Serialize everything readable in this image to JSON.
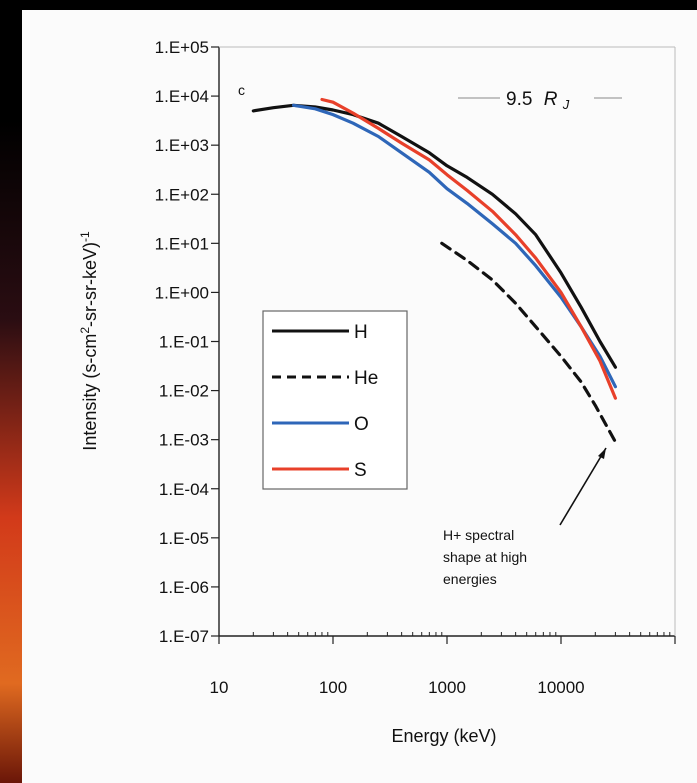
{
  "chart_data": {
    "type": "line",
    "panel_letter": "c",
    "location_label": "9.5",
    "location_unit": "R",
    "location_unit_sub": "J",
    "xlabel": "Energy (keV)",
    "ylabel_parts": [
      "Intensity (s-cm",
      "2",
      "-sr-sr-keV)",
      "-1"
    ],
    "xscale": "log",
    "yscale": "log",
    "xlim": [
      10,
      100000
    ],
    "ylim": [
      1e-07,
      100000.0
    ],
    "x_tick_labels": [
      "10",
      "100",
      "1000",
      "10000"
    ],
    "y_tick_labels": [
      "1.E+05",
      "1.E+04",
      "1.E+03",
      "1.E+02",
      "1.E+01",
      "1.E+00",
      "1.E-01",
      "1.E-02",
      "1.E-03",
      "1.E-04",
      "1.E-05",
      "1.E-06",
      "1.E-07"
    ],
    "annotation_lines": [
      "H+ spectral",
      "shape at high",
      "energies"
    ],
    "series": [
      {
        "name": "H",
        "color": "#111111",
        "dash": "solid",
        "x": [
          20,
          30,
          45,
          70,
          100,
          150,
          250,
          400,
          700,
          1000,
          1500,
          2500,
          4000,
          6000,
          10000,
          15000,
          22000,
          30000
        ],
        "y": [
          5000,
          5800,
          6500,
          6000,
          5200,
          4200,
          2800,
          1500,
          700,
          380,
          220,
          100,
          40,
          15,
          2.5,
          0.5,
          0.1,
          0.03
        ]
      },
      {
        "name": "He",
        "color": "#111111",
        "dash": "dashed",
        "x": [
          900,
          1500,
          2500,
          4000,
          6000,
          10000,
          15000,
          20000,
          30000
        ],
        "y": [
          10,
          4.5,
          1.8,
          0.6,
          0.2,
          0.05,
          0.015,
          0.005,
          0.0009
        ]
      },
      {
        "name": "O",
        "color": "#2e66b8",
        "dash": "solid",
        "x": [
          45,
          70,
          100,
          150,
          250,
          400,
          700,
          1000,
          1500,
          2500,
          4000,
          6000,
          10000,
          15000,
          22000,
          30000
        ],
        "y": [
          6500,
          5500,
          4200,
          2800,
          1500,
          700,
          280,
          130,
          65,
          25,
          10,
          3.5,
          0.8,
          0.2,
          0.05,
          0.012
        ]
      },
      {
        "name": "S",
        "color": "#e8402a",
        "dash": "solid",
        "x": [
          80,
          100,
          150,
          250,
          400,
          700,
          1000,
          1500,
          2500,
          4000,
          6000,
          10000,
          15000,
          22000,
          30000
        ],
        "y": [
          8500,
          7500,
          4500,
          2200,
          1100,
          500,
          250,
          120,
          45,
          15,
          5,
          1,
          0.2,
          0.04,
          0.007
        ]
      }
    ]
  }
}
